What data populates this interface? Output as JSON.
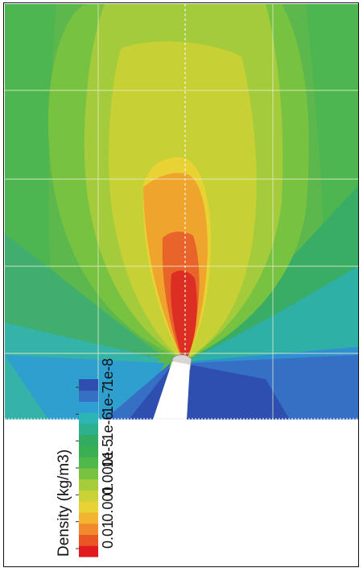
{
  "legend": {
    "title": "Density (kg/m3)",
    "ticks": [
      "0.01",
      "0.001",
      "0.0001",
      "1e-5",
      "1e-6",
      "1e-7",
      "1e-8"
    ],
    "colors": [
      "#e01a1d",
      "#ea5526",
      "#f08a2c",
      "#f2b431",
      "#e9d233",
      "#c9d236",
      "#a6cc3c",
      "#78c241",
      "#4fb84a",
      "#3aae52",
      "#34ab63",
      "#2fb08c",
      "#2db4b5",
      "#2f9fd3",
      "#3570c5",
      "#2e4fb0"
    ],
    "scale": "log"
  },
  "field": {
    "quantity": "Density",
    "unit": "kg/m3",
    "range": [
      1e-08,
      0.01
    ]
  }
}
